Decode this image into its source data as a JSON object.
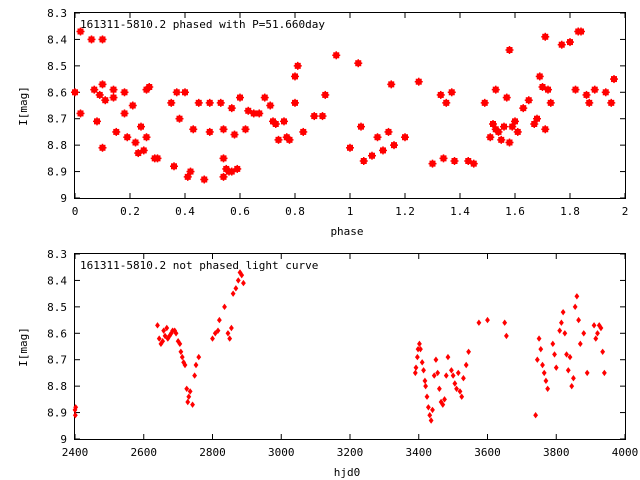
{
  "chart_data": [
    {
      "type": "scatter",
      "title": "161311-5810.2 phased with P=51.660day",
      "xlabel": "phase",
      "ylabel": "I[mag]",
      "xlim": [
        0,
        2
      ],
      "ylim": [
        9,
        8.3
      ],
      "y_inverted": true,
      "grid": false,
      "marker": "cross",
      "color": "#ff0000",
      "x_ticks": [
        "0",
        "0.2",
        "0.4",
        "0.6",
        "0.8",
        "1",
        "1.2",
        "1.4",
        "1.6",
        "1.8",
        "2"
      ],
      "y_ticks": [
        "8.3",
        "8.4",
        "8.5",
        "8.6",
        "8.7",
        "8.8",
        "8.9",
        "9"
      ],
      "points": [
        [
          0.0,
          8.6
        ],
        [
          0.02,
          8.37
        ],
        [
          0.02,
          8.68
        ],
        [
          0.06,
          8.4
        ],
        [
          0.07,
          8.59
        ],
        [
          0.08,
          8.71
        ],
        [
          0.09,
          8.61
        ],
        [
          0.1,
          8.57
        ],
        [
          0.1,
          8.4
        ],
        [
          0.1,
          8.81
        ],
        [
          0.11,
          8.63
        ],
        [
          0.14,
          8.62
        ],
        [
          0.14,
          8.59
        ],
        [
          0.15,
          8.75
        ],
        [
          0.18,
          8.6
        ],
        [
          0.18,
          8.68
        ],
        [
          0.19,
          8.77
        ],
        [
          0.21,
          8.65
        ],
        [
          0.22,
          8.79
        ],
        [
          0.23,
          8.83
        ],
        [
          0.24,
          8.73
        ],
        [
          0.25,
          8.82
        ],
        [
          0.26,
          8.59
        ],
        [
          0.26,
          8.77
        ],
        [
          0.27,
          8.58
        ],
        [
          0.29,
          8.85
        ],
        [
          0.3,
          8.85
        ],
        [
          0.35,
          8.64
        ],
        [
          0.36,
          8.88
        ],
        [
          0.37,
          8.6
        ],
        [
          0.38,
          8.7
        ],
        [
          0.4,
          8.6
        ],
        [
          0.41,
          8.92
        ],
        [
          0.42,
          8.9
        ],
        [
          0.43,
          8.74
        ],
        [
          0.45,
          8.64
        ],
        [
          0.47,
          8.93
        ],
        [
          0.49,
          8.75
        ],
        [
          0.49,
          8.64
        ],
        [
          0.53,
          8.64
        ],
        [
          0.54,
          8.74
        ],
        [
          0.54,
          8.85
        ],
        [
          0.54,
          8.92
        ],
        [
          0.55,
          8.89
        ],
        [
          0.56,
          8.9
        ],
        [
          0.57,
          8.9
        ],
        [
          0.57,
          8.66
        ],
        [
          0.58,
          8.76
        ],
        [
          0.59,
          8.89
        ],
        [
          0.6,
          8.62
        ],
        [
          0.62,
          8.74
        ],
        [
          0.63,
          8.67
        ],
        [
          0.65,
          8.68
        ],
        [
          0.67,
          8.68
        ],
        [
          0.69,
          8.62
        ],
        [
          0.71,
          8.65
        ],
        [
          0.72,
          8.71
        ],
        [
          0.73,
          8.72
        ],
        [
          0.74,
          8.78
        ],
        [
          0.76,
          8.71
        ],
        [
          0.77,
          8.77
        ],
        [
          0.78,
          8.78
        ],
        [
          0.8,
          8.54
        ],
        [
          0.8,
          8.64
        ],
        [
          0.81,
          8.5
        ],
        [
          0.83,
          8.75
        ],
        [
          0.87,
          8.69
        ],
        [
          0.9,
          8.69
        ],
        [
          0.91,
          8.61
        ],
        [
          0.95,
          8.46
        ],
        [
          1.0,
          8.81
        ],
        [
          1.03,
          8.49
        ],
        [
          1.04,
          8.73
        ],
        [
          1.05,
          8.86
        ],
        [
          1.08,
          8.84
        ],
        [
          1.1,
          8.77
        ],
        [
          1.12,
          8.82
        ],
        [
          1.14,
          8.75
        ],
        [
          1.15,
          8.57
        ],
        [
          1.16,
          8.8
        ],
        [
          1.2,
          8.77
        ],
        [
          1.25,
          8.56
        ],
        [
          1.3,
          8.87
        ],
        [
          1.33,
          8.61
        ],
        [
          1.34,
          8.85
        ],
        [
          1.35,
          8.64
        ],
        [
          1.37,
          8.6
        ],
        [
          1.38,
          8.86
        ],
        [
          1.43,
          8.86
        ],
        [
          1.45,
          8.87
        ],
        [
          1.49,
          8.64
        ],
        [
          1.51,
          8.77
        ],
        [
          1.52,
          8.72
        ],
        [
          1.53,
          8.59
        ],
        [
          1.53,
          8.74
        ],
        [
          1.54,
          8.75
        ],
        [
          1.55,
          8.78
        ],
        [
          1.56,
          8.73
        ],
        [
          1.57,
          8.62
        ],
        [
          1.58,
          8.44
        ],
        [
          1.58,
          8.79
        ],
        [
          1.59,
          8.73
        ],
        [
          1.6,
          8.71
        ],
        [
          1.61,
          8.75
        ],
        [
          1.63,
          8.66
        ],
        [
          1.65,
          8.63
        ],
        [
          1.67,
          8.72
        ],
        [
          1.68,
          8.7
        ],
        [
          1.69,
          8.54
        ],
        [
          1.7,
          8.58
        ],
        [
          1.71,
          8.39
        ],
        [
          1.71,
          8.74
        ],
        [
          1.72,
          8.59
        ],
        [
          1.73,
          8.64
        ],
        [
          1.77,
          8.42
        ],
        [
          1.8,
          8.41
        ],
        [
          1.82,
          8.59
        ],
        [
          1.83,
          8.37
        ],
        [
          1.84,
          8.37
        ],
        [
          1.86,
          8.61
        ],
        [
          1.87,
          8.64
        ],
        [
          1.89,
          8.59
        ],
        [
          1.93,
          8.6
        ],
        [
          1.95,
          8.64
        ],
        [
          1.96,
          8.55
        ]
      ]
    },
    {
      "type": "scatter",
      "title": "161311-5810.2 not phased light curve",
      "xlabel": "hjd0",
      "ylabel": "I[mag]",
      "xlim": [
        2400,
        4000
      ],
      "ylim": [
        9,
        8.3
      ],
      "y_inverted": true,
      "grid": false,
      "marker": "diamond",
      "color": "#ff0000",
      "x_ticks": [
        "2400",
        "2600",
        "2800",
        "3000",
        "3200",
        "3400",
        "3600",
        "3800",
        "4000"
      ],
      "y_ticks": [
        "8.3",
        "8.4",
        "8.5",
        "8.6",
        "8.7",
        "8.8",
        "8.9",
        "9"
      ],
      "points": [
        [
          2400,
          8.89
        ],
        [
          2401,
          8.91
        ],
        [
          2402,
          8.88
        ],
        [
          2640,
          8.57
        ],
        [
          2645,
          8.62
        ],
        [
          2650,
          8.64
        ],
        [
          2655,
          8.63
        ],
        [
          2658,
          8.59
        ],
        [
          2662,
          8.61
        ],
        [
          2667,
          8.58
        ],
        [
          2670,
          8.62
        ],
        [
          2675,
          8.61
        ],
        [
          2680,
          8.6
        ],
        [
          2684,
          8.59
        ],
        [
          2690,
          8.59
        ],
        [
          2694,
          8.6
        ],
        [
          2700,
          8.63
        ],
        [
          2705,
          8.64
        ],
        [
          2708,
          8.67
        ],
        [
          2712,
          8.69
        ],
        [
          2716,
          8.71
        ],
        [
          2720,
          8.72
        ],
        [
          2725,
          8.81
        ],
        [
          2728,
          8.86
        ],
        [
          2731,
          8.84
        ],
        [
          2735,
          8.82
        ],
        [
          2742,
          8.87
        ],
        [
          2748,
          8.76
        ],
        [
          2752,
          8.72
        ],
        [
          2760,
          8.69
        ],
        [
          2800,
          8.62
        ],
        [
          2808,
          8.6
        ],
        [
          2816,
          8.59
        ],
        [
          2820,
          8.55
        ],
        [
          2835,
          8.5
        ],
        [
          2845,
          8.6
        ],
        [
          2850,
          8.62
        ],
        [
          2855,
          8.58
        ],
        [
          2860,
          8.45
        ],
        [
          2868,
          8.43
        ],
        [
          2875,
          8.4
        ],
        [
          2880,
          8.37
        ],
        [
          2885,
          8.38
        ],
        [
          2890,
          8.41
        ],
        [
          3390,
          8.75
        ],
        [
          3392,
          8.73
        ],
        [
          3396,
          8.69
        ],
        [
          3398,
          8.66
        ],
        [
          3402,
          8.64
        ],
        [
          3405,
          8.66
        ],
        [
          3410,
          8.71
        ],
        [
          3414,
          8.74
        ],
        [
          3418,
          8.78
        ],
        [
          3420,
          8.8
        ],
        [
          3424,
          8.84
        ],
        [
          3428,
          8.88
        ],
        [
          3432,
          8.91
        ],
        [
          3436,
          8.93
        ],
        [
          3440,
          8.89
        ],
        [
          3445,
          8.76
        ],
        [
          3450,
          8.7
        ],
        [
          3455,
          8.75
        ],
        [
          3460,
          8.81
        ],
        [
          3465,
          8.86
        ],
        [
          3470,
          8.87
        ],
        [
          3475,
          8.85
        ],
        [
          3480,
          8.76
        ],
        [
          3485,
          8.69
        ],
        [
          3495,
          8.74
        ],
        [
          3500,
          8.76
        ],
        [
          3505,
          8.79
        ],
        [
          3510,
          8.81
        ],
        [
          3515,
          8.75
        ],
        [
          3520,
          8.82
        ],
        [
          3525,
          8.84
        ],
        [
          3530,
          8.77
        ],
        [
          3538,
          8.72
        ],
        [
          3545,
          8.67
        ],
        [
          3575,
          8.56
        ],
        [
          3600,
          8.55
        ],
        [
          3650,
          8.56
        ],
        [
          3655,
          8.61
        ],
        [
          3740,
          8.91
        ],
        [
          3745,
          8.7
        ],
        [
          3750,
          8.62
        ],
        [
          3755,
          8.66
        ],
        [
          3760,
          8.72
        ],
        [
          3765,
          8.75
        ],
        [
          3770,
          8.78
        ],
        [
          3775,
          8.81
        ],
        [
          3790,
          8.64
        ],
        [
          3795,
          8.68
        ],
        [
          3800,
          8.73
        ],
        [
          3810,
          8.59
        ],
        [
          3815,
          8.56
        ],
        [
          3820,
          8.52
        ],
        [
          3825,
          8.6
        ],
        [
          3830,
          8.68
        ],
        [
          3835,
          8.74
        ],
        [
          3840,
          8.69
        ],
        [
          3845,
          8.8
        ],
        [
          3850,
          8.77
        ],
        [
          3855,
          8.5
        ],
        [
          3860,
          8.46
        ],
        [
          3865,
          8.55
        ],
        [
          3870,
          8.64
        ],
        [
          3880,
          8.6
        ],
        [
          3890,
          8.75
        ],
        [
          3910,
          8.57
        ],
        [
          3915,
          8.62
        ],
        [
          3920,
          8.6
        ],
        [
          3925,
          8.57
        ],
        [
          3930,
          8.58
        ],
        [
          3935,
          8.67
        ],
        [
          3940,
          8.75
        ]
      ]
    }
  ]
}
